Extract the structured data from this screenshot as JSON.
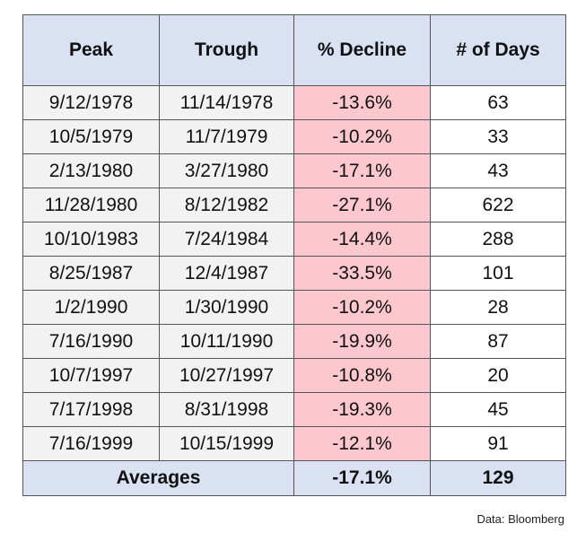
{
  "table": {
    "headers": [
      "Peak",
      "Trough",
      "% Decline",
      "# of Days"
    ],
    "rows": [
      [
        "9/12/1978",
        "11/14/1978",
        "-13.6%",
        "63"
      ],
      [
        "10/5/1979",
        "11/7/1979",
        "-10.2%",
        "33"
      ],
      [
        "2/13/1980",
        "3/27/1980",
        "-17.1%",
        "43"
      ],
      [
        "11/28/1980",
        "8/12/1982",
        "-27.1%",
        "622"
      ],
      [
        "10/10/1983",
        "7/24/1984",
        "-14.4%",
        "288"
      ],
      [
        "8/25/1987",
        "12/4/1987",
        "-33.5%",
        "101"
      ],
      [
        "1/2/1990",
        "1/30/1990",
        "-10.2%",
        "28"
      ],
      [
        "7/16/1990",
        "10/11/1990",
        "-19.9%",
        "87"
      ],
      [
        "10/7/1997",
        "10/27/1997",
        "-10.8%",
        "20"
      ],
      [
        "7/17/1998",
        "8/31/1998",
        "-19.3%",
        "45"
      ],
      [
        "7/16/1999",
        "10/15/1999",
        "-12.1%",
        "91"
      ]
    ],
    "averages": {
      "label": "Averages",
      "decline": "-17.1%",
      "days": "129"
    }
  },
  "source": "Data: Bloomberg",
  "colors": {
    "header_bg": "#d9e1f2",
    "date_bg": "#f2f2f2",
    "decline_bg": "#fcc7cf",
    "decline_text": "#e4002b"
  }
}
